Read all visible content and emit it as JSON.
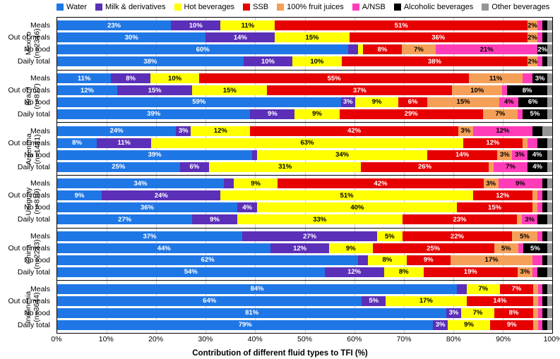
{
  "legend": [
    {
      "label": "Water",
      "color": "#1f77e5"
    },
    {
      "label": "Milk & derivatives",
      "color": "#5b2fb8"
    },
    {
      "label": "Hot beverages",
      "color": "#ffff00"
    },
    {
      "label": "SSB",
      "color": "#e60000"
    },
    {
      "label": "100% fruit juices",
      "color": "#f5a058"
    },
    {
      "label": "A/NSB",
      "color": "#ff3db8"
    },
    {
      "label": "Alcoholic beverages",
      "color": "#000000"
    },
    {
      "label": "Other beverages",
      "color": "#969696"
    }
  ],
  "segLabelColors": {
    "#1f77e5": "#ffffff",
    "#5b2fb8": "#ffffff",
    "#ffff00": "#000000",
    "#e60000": "#ffffff",
    "#f5a058": "#000000",
    "#ff3db8": "#000000",
    "#000000": "#ffffff",
    "#969696": "#000000"
  },
  "rowLabels": [
    "Meals",
    "Out of meals",
    "No food",
    "Daily total"
  ],
  "xTicks": [
    "0%",
    "10%",
    "20%",
    "30%",
    "40%",
    "50%",
    "60%",
    "70%",
    "80%",
    "90%",
    "100%"
  ],
  "xTitle": "Contribution of different fluid types to TFI (%)",
  "minLabelPercent": 3,
  "countries": [
    {
      "name": "Mexico",
      "n": "(n=2346)",
      "rows": [
        [
          23,
          10,
          11,
          51,
          2,
          1,
          1,
          1
        ],
        [
          30,
          14,
          15,
          36,
          2,
          1,
          1,
          1
        ],
        [
          60,
          2,
          1,
          8,
          7,
          21,
          2,
          1
        ],
        [
          38,
          10,
          10,
          38,
          2,
          1,
          1,
          1
        ]
      ],
      "showSmall": [
        [
          false,
          false,
          false,
          false,
          true,
          false,
          false,
          false
        ],
        [
          false,
          false,
          false,
          false,
          true,
          false,
          false,
          false
        ],
        [
          false,
          false,
          false,
          false,
          false,
          false,
          true,
          false
        ],
        [
          false,
          false,
          false,
          false,
          true,
          false,
          false,
          false
        ]
      ]
    },
    {
      "name": "Brazil",
      "n": "(n=817)",
      "rows": [
        [
          11,
          8,
          10,
          55,
          11,
          2,
          3,
          1
        ],
        [
          12,
          15,
          15,
          37,
          10,
          1,
          8,
          1
        ],
        [
          59,
          3,
          9,
          6,
          15,
          4,
          6,
          1
        ],
        [
          39,
          9,
          9,
          29,
          7,
          1,
          5,
          1
        ]
      ]
    },
    {
      "name": "Argentina",
      "n": "(n=1481)",
      "rows": [
        [
          24,
          3,
          12,
          42,
          3,
          12,
          2,
          2
        ],
        [
          8,
          11,
          63,
          12,
          1,
          2,
          2,
          1
        ],
        [
          39,
          1,
          34,
          14,
          3,
          3,
          4,
          1
        ],
        [
          25,
          6,
          31,
          26,
          1,
          7,
          4,
          1
        ]
      ]
    },
    {
      "name": "Uruguay",
      "n": "(n=819)",
      "rows": [
        [
          34,
          2,
          9,
          42,
          3,
          9,
          1,
          1
        ],
        [
          9,
          24,
          51,
          12,
          1,
          1,
          1,
          1
        ],
        [
          36,
          4,
          40,
          15,
          1,
          1,
          1,
          1
        ],
        [
          27,
          9,
          33,
          23,
          1,
          3,
          2,
          1
        ]
      ]
    },
    {
      "name": "China",
      "n": "(n=2233)",
      "rows": [
        [
          37,
          27,
          5,
          22,
          5,
          1,
          1,
          1
        ],
        [
          44,
          12,
          9,
          25,
          5,
          1,
          5,
          1
        ],
        [
          62,
          2,
          8,
          9,
          17,
          2,
          1,
          1
        ],
        [
          54,
          12,
          8,
          19,
          3,
          1,
          2,
          1
        ]
      ]
    },
    {
      "name": "Indonesia",
      "n": "(n=3644)",
      "rows": [
        [
          84,
          2,
          7,
          7,
          1,
          1,
          1,
          1
        ],
        [
          64,
          5,
          17,
          14,
          1,
          1,
          1,
          1
        ],
        [
          81,
          3,
          7,
          8,
          1,
          1,
          1,
          1
        ],
        [
          79,
          3,
          9,
          9,
          1,
          1,
          1,
          1
        ]
      ]
    }
  ]
}
